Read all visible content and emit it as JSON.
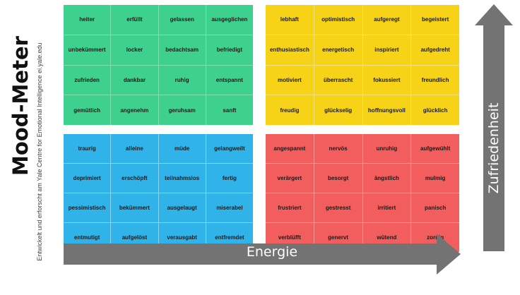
{
  "title": "Mood-Meter",
  "subtitle": "Entwickelt und erforscht am Yale Centre for Emotional Intelligence ei.yale.edu",
  "axes": {
    "x_label": "Energie",
    "y_label": "Zufriedenheit"
  },
  "colors": {
    "green": "#3ed18d",
    "yellow": "#f7d318",
    "blue": "#2fb3e8",
    "red": "#f25e5e",
    "arrow": "#737373"
  },
  "quadrants": {
    "green": [
      "heiter",
      "erfüllt",
      "gelassen",
      "ausgeglichen",
      "unbekümmert",
      "locker",
      "bedachtsam",
      "befriedigt",
      "zufrieden",
      "dankbar",
      "ruhig",
      "entspannt",
      "gemütlich",
      "angenehm",
      "geruhsam",
      "sanft"
    ],
    "yellow": [
      "lebhaft",
      "optimistisch",
      "aufgeregt",
      "begeistert",
      "enthusiastisch",
      "energetisch",
      "inspiriert",
      "aufgedreht",
      "motiviert",
      "überrascht",
      "fokussiert",
      "freundlich",
      "freudig",
      "glückselig",
      "hoffnungsvoll",
      "glücklich"
    ],
    "blue": [
      "traurig",
      "alleine",
      "müde",
      "gelangweilt",
      "deprimiert",
      "erschöpft",
      "teilnahmslos",
      "fertig",
      "pessimistisch",
      "bekümmert",
      "ausgelaugt",
      "miserabel",
      "entmutigt",
      "aufgelöst",
      "verausgabt",
      "entfremdet"
    ],
    "red": [
      "angespannt",
      "nervös",
      "unruhig",
      "aufgewühlt",
      "verärgert",
      "besorgt",
      "ängstlich",
      "mulmig",
      "frustriert",
      "gestresst",
      "irritiert",
      "panisch",
      "verblüfft",
      "genervt",
      "wütend",
      "zornig"
    ]
  }
}
